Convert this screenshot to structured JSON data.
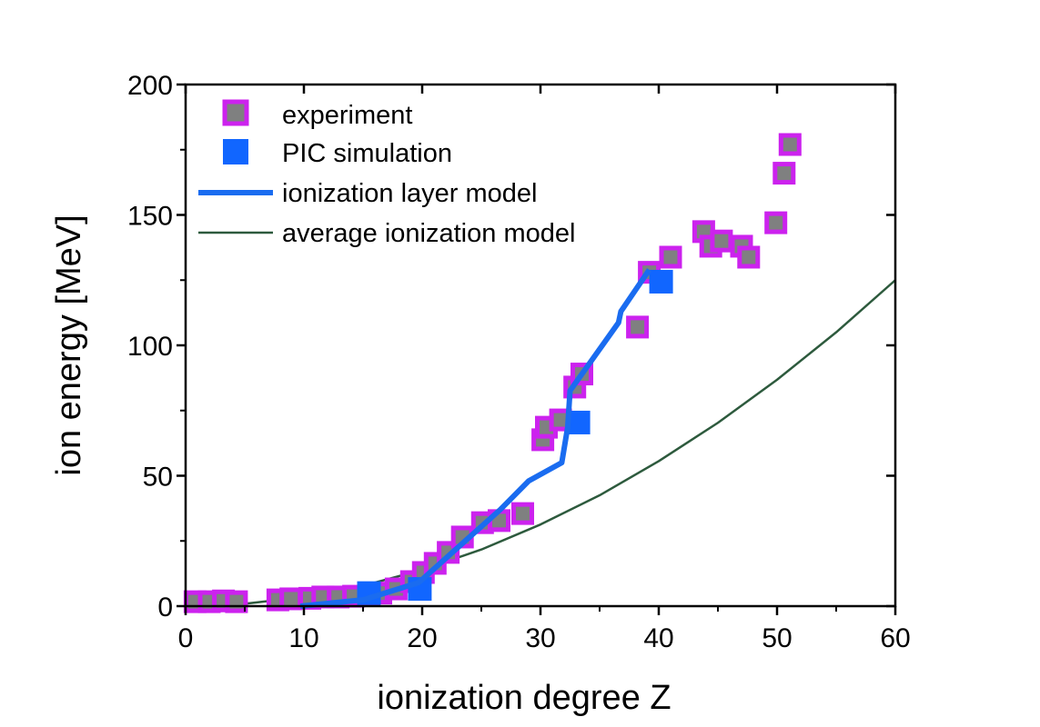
{
  "chart_data": {
    "type": "scatter",
    "xlabel": "ionization degree Z",
    "ylabel": "ion energy [MeV]",
    "xlim": [
      0,
      60
    ],
    "ylim": [
      0,
      200
    ],
    "xticks": [
      0,
      10,
      20,
      30,
      40,
      50,
      60
    ],
    "yticks": [
      0,
      50,
      100,
      150,
      200
    ],
    "grid": false,
    "legend_position": "top-left",
    "series": [
      {
        "name": "experiment",
        "kind": "scatter",
        "marker": "square",
        "fill": "#7f8080",
        "edge": "#cc22ee",
        "x": [
          0.8,
          2,
          3.2,
          4.3,
          7.8,
          8.9,
          10.5,
          11.6,
          12.9,
          14.2,
          15.5,
          16.5,
          17.8,
          19.1,
          20.1,
          21.1,
          22.2,
          23.4,
          25.1,
          26.5,
          28.5,
          30.2,
          30.5,
          31.7,
          32.9,
          33.5,
          38.2,
          39.2,
          41,
          43.8,
          44.4,
          45.3,
          47,
          47.6,
          49.9,
          50.6,
          51.1
        ],
        "y": [
          1.7,
          1.7,
          2,
          1.7,
          2.4,
          2.8,
          3,
          3.5,
          3.5,
          3.8,
          4.5,
          5,
          6.6,
          9.4,
          12.9,
          16.4,
          20.6,
          26.5,
          32,
          32.8,
          35.5,
          63.8,
          68.6,
          71.4,
          84,
          89,
          107,
          128,
          133.8,
          143.6,
          138,
          140,
          138,
          133.8,
          147,
          166,
          177
        ]
      },
      {
        "name": "PIC simulation",
        "kind": "scatter",
        "marker": "square",
        "fill": "#1166ff",
        "x": [
          15.5,
          19.8,
          33.2,
          40.2
        ],
        "y": [
          5,
          6.6,
          70.4,
          124.4
        ]
      },
      {
        "name": "ionization layer model",
        "kind": "line",
        "color": "#1a6cf0",
        "x": [
          9.7,
          15,
          19.7,
          22.8,
          26.6,
          29,
          31.8,
          32.3,
          32.5,
          36.6,
          36.8,
          39.2
        ],
        "y": [
          0,
          2.4,
          9,
          21.6,
          37,
          48,
          55,
          68.6,
          82.6,
          108.7,
          113,
          129
        ]
      },
      {
        "name": "average ionization model",
        "kind": "line",
        "color": "#2d5a3d",
        "x": [
          5,
          10,
          15,
          20,
          25,
          30,
          35,
          40,
          45,
          50,
          55,
          60
        ],
        "y": [
          0.9,
          3.5,
          7.8,
          13.9,
          21.7,
          31.3,
          42.5,
          55.6,
          70.3,
          86.8,
          105,
          125
        ]
      }
    ]
  }
}
